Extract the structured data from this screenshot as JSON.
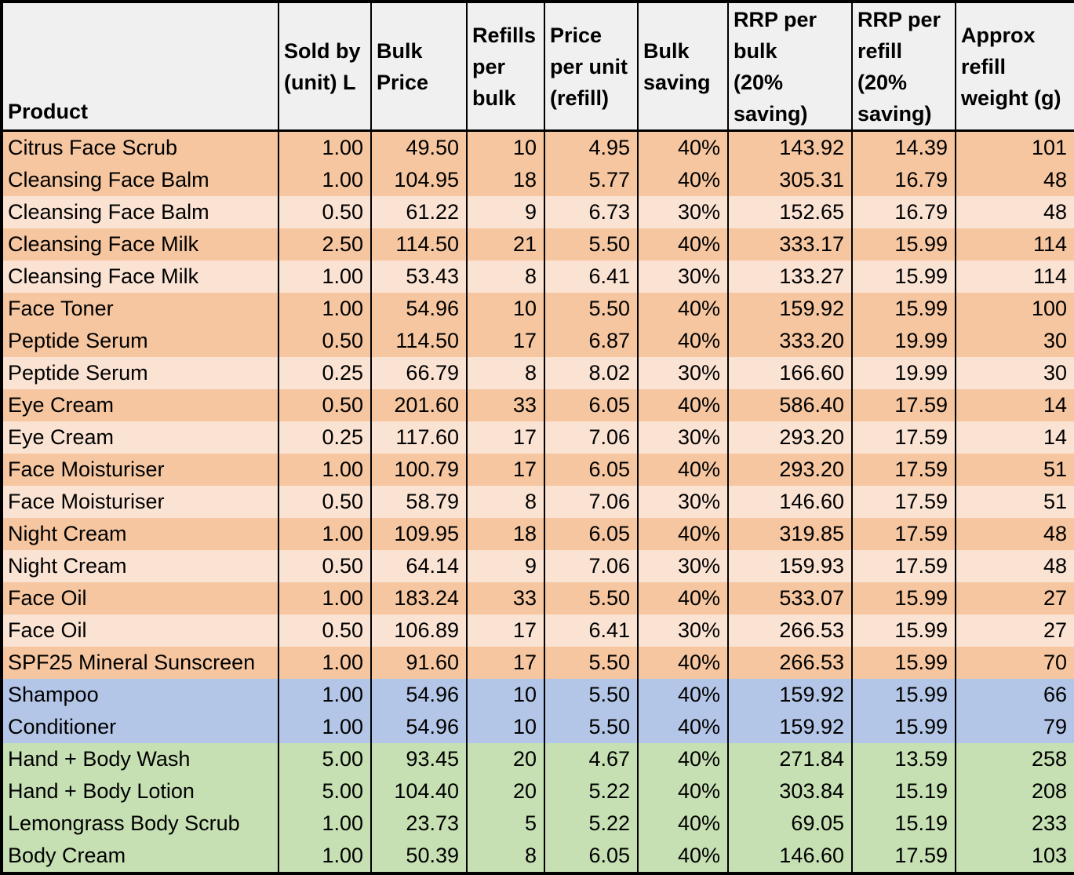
{
  "table": {
    "columns": [
      {
        "key": "product",
        "label": "Product",
        "align": "left"
      },
      {
        "key": "sold_by_unit_l",
        "label": "Sold by\n(unit) L",
        "align": "right"
      },
      {
        "key": "bulk_price",
        "label": "Bulk\nPrice",
        "align": "right"
      },
      {
        "key": "refills_per_bulk",
        "label": "Refills\nper\nbulk",
        "align": "right"
      },
      {
        "key": "price_per_unit_refill",
        "label": "Price\nper unit\n(refill)",
        "align": "right"
      },
      {
        "key": "bulk_saving",
        "label": "Bulk\nsaving",
        "align": "right"
      },
      {
        "key": "rrp_per_bulk",
        "label": "RRP per\nbulk\n(20%\nsaving)",
        "align": "right"
      },
      {
        "key": "rrp_per_refill",
        "label": "RRP per\nrefill\n(20%\nsaving)",
        "align": "right"
      },
      {
        "key": "approx_refill_weight_g",
        "label": "Approx\nrefill\nweight (g)",
        "align": "right"
      }
    ],
    "rows": [
      {
        "shade": "orange-dark",
        "cells": [
          "Citrus Face Scrub",
          "1.00",
          "49.50",
          "10",
          "4.95",
          "40%",
          "143.92",
          "14.39",
          "101"
        ]
      },
      {
        "shade": "orange-dark",
        "cells": [
          "Cleansing Face Balm",
          "1.00",
          "104.95",
          "18",
          "5.77",
          "40%",
          "305.31",
          "16.79",
          "48"
        ]
      },
      {
        "shade": "orange-light",
        "cells": [
          "Cleansing Face Balm",
          "0.50",
          "61.22",
          "9",
          "6.73",
          "30%",
          "152.65",
          "16.79",
          "48"
        ]
      },
      {
        "shade": "orange-dark",
        "cells": [
          "Cleansing Face Milk",
          "2.50",
          "114.50",
          "21",
          "5.50",
          "40%",
          "333.17",
          "15.99",
          "114"
        ]
      },
      {
        "shade": "orange-light",
        "cells": [
          "Cleansing Face Milk",
          "1.00",
          "53.43",
          "8",
          "6.41",
          "30%",
          "133.27",
          "15.99",
          "114"
        ]
      },
      {
        "shade": "orange-dark",
        "cells": [
          "Face Toner",
          "1.00",
          "54.96",
          "10",
          "5.50",
          "40%",
          "159.92",
          "15.99",
          "100"
        ]
      },
      {
        "shade": "orange-dark",
        "cells": [
          "Peptide Serum",
          "0.50",
          "114.50",
          "17",
          "6.87",
          "40%",
          "333.20",
          "19.99",
          "30"
        ]
      },
      {
        "shade": "orange-light",
        "cells": [
          "Peptide Serum",
          "0.25",
          "66.79",
          "8",
          "8.02",
          "30%",
          "166.60",
          "19.99",
          "30"
        ]
      },
      {
        "shade": "orange-dark",
        "cells": [
          "Eye Cream",
          "0.50",
          "201.60",
          "33",
          "6.05",
          "40%",
          "586.40",
          "17.59",
          "14"
        ]
      },
      {
        "shade": "orange-light",
        "cells": [
          "Eye Cream",
          "0.25",
          "117.60",
          "17",
          "7.06",
          "30%",
          "293.20",
          "17.59",
          "14"
        ]
      },
      {
        "shade": "orange-dark",
        "cells": [
          "Face Moisturiser",
          "1.00",
          "100.79",
          "17",
          "6.05",
          "40%",
          "293.20",
          "17.59",
          "51"
        ]
      },
      {
        "shade": "orange-light",
        "cells": [
          "Face Moisturiser",
          "0.50",
          "58.79",
          "8",
          "7.06",
          "30%",
          "146.60",
          "17.59",
          "51"
        ]
      },
      {
        "shade": "orange-dark",
        "cells": [
          "Night Cream",
          "1.00",
          "109.95",
          "18",
          "6.05",
          "40%",
          "319.85",
          "17.59",
          "48"
        ]
      },
      {
        "shade": "orange-light",
        "cells": [
          "Night Cream",
          "0.50",
          "64.14",
          "9",
          "7.06",
          "30%",
          "159.93",
          "17.59",
          "48"
        ]
      },
      {
        "shade": "orange-dark",
        "cells": [
          "Face Oil",
          "1.00",
          "183.24",
          "33",
          "5.50",
          "40%",
          "533.07",
          "15.99",
          "27"
        ]
      },
      {
        "shade": "orange-light",
        "cells": [
          "Face Oil",
          "0.50",
          "106.89",
          "17",
          "6.41",
          "30%",
          "266.53",
          "15.99",
          "27"
        ]
      },
      {
        "shade": "orange-dark",
        "cells": [
          "SPF25 Mineral Sunscreen",
          "1.00",
          "91.60",
          "17",
          "5.50",
          "40%",
          "266.53",
          "15.99",
          "70"
        ]
      },
      {
        "shade": "blue",
        "cells": [
          "Shampoo",
          "1.00",
          "54.96",
          "10",
          "5.50",
          "40%",
          "159.92",
          "15.99",
          "66"
        ]
      },
      {
        "shade": "blue",
        "cells": [
          "Conditioner",
          "1.00",
          "54.96",
          "10",
          "5.50",
          "40%",
          "159.92",
          "15.99",
          "79"
        ]
      },
      {
        "shade": "green",
        "cells": [
          "Hand + Body Wash",
          "5.00",
          "93.45",
          "20",
          "4.67",
          "40%",
          "271.84",
          "13.59",
          "258"
        ]
      },
      {
        "shade": "green",
        "cells": [
          "Hand + Body Lotion",
          "5.00",
          "104.40",
          "20",
          "5.22",
          "40%",
          "303.84",
          "15.19",
          "208"
        ]
      },
      {
        "shade": "green",
        "cells": [
          "Lemongrass Body Scrub",
          "1.00",
          "23.73",
          "5",
          "5.22",
          "40%",
          "69.05",
          "15.19",
          "233"
        ]
      },
      {
        "shade": "green",
        "cells": [
          "Body Cream",
          "1.00",
          "50.39",
          "8",
          "6.05",
          "40%",
          "146.60",
          "17.59",
          "103"
        ]
      }
    ]
  },
  "colors": {
    "row_orange_dark": "#f5c6a0",
    "row_orange_light": "#fbe3d3",
    "row_blue": "#b4c6e7",
    "row_green": "#c6e0b4",
    "header_background": "#f0f0f0",
    "grid_border": "#000000"
  }
}
